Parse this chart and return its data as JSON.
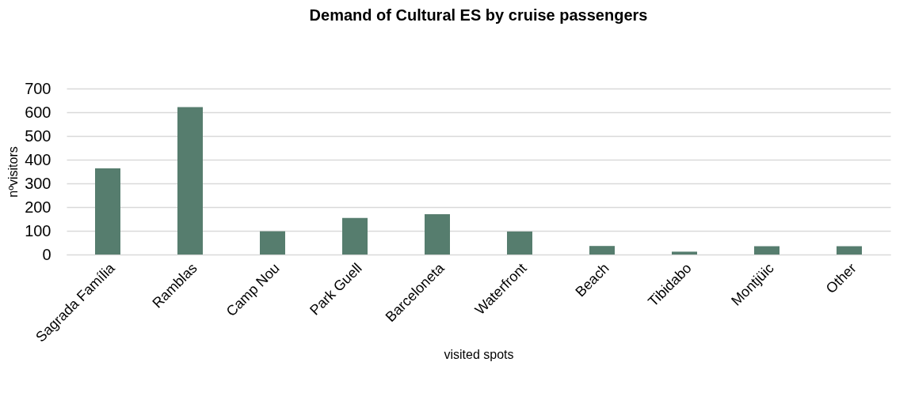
{
  "chart_data": {
    "type": "bar",
    "title": "Demand of Cultural ES by cruise passengers",
    "xlabel": "visited spots",
    "ylabel": "nºvisitors",
    "categories": [
      "Sagrada Família",
      "Ramblas",
      "Camp Nou",
      "Park Guell",
      "Barceloneta",
      "Waterfront",
      "Beach",
      "Tibidabo",
      "Montjüic",
      "Other"
    ],
    "values": [
      363,
      622,
      98,
      154,
      170,
      97,
      36,
      12,
      35,
      35
    ],
    "color": "#567d6e",
    "ylim": [
      0,
      700
    ],
    "yticks": [
      0,
      100,
      200,
      300,
      400,
      500,
      600,
      700
    ],
    "grid": "y"
  }
}
